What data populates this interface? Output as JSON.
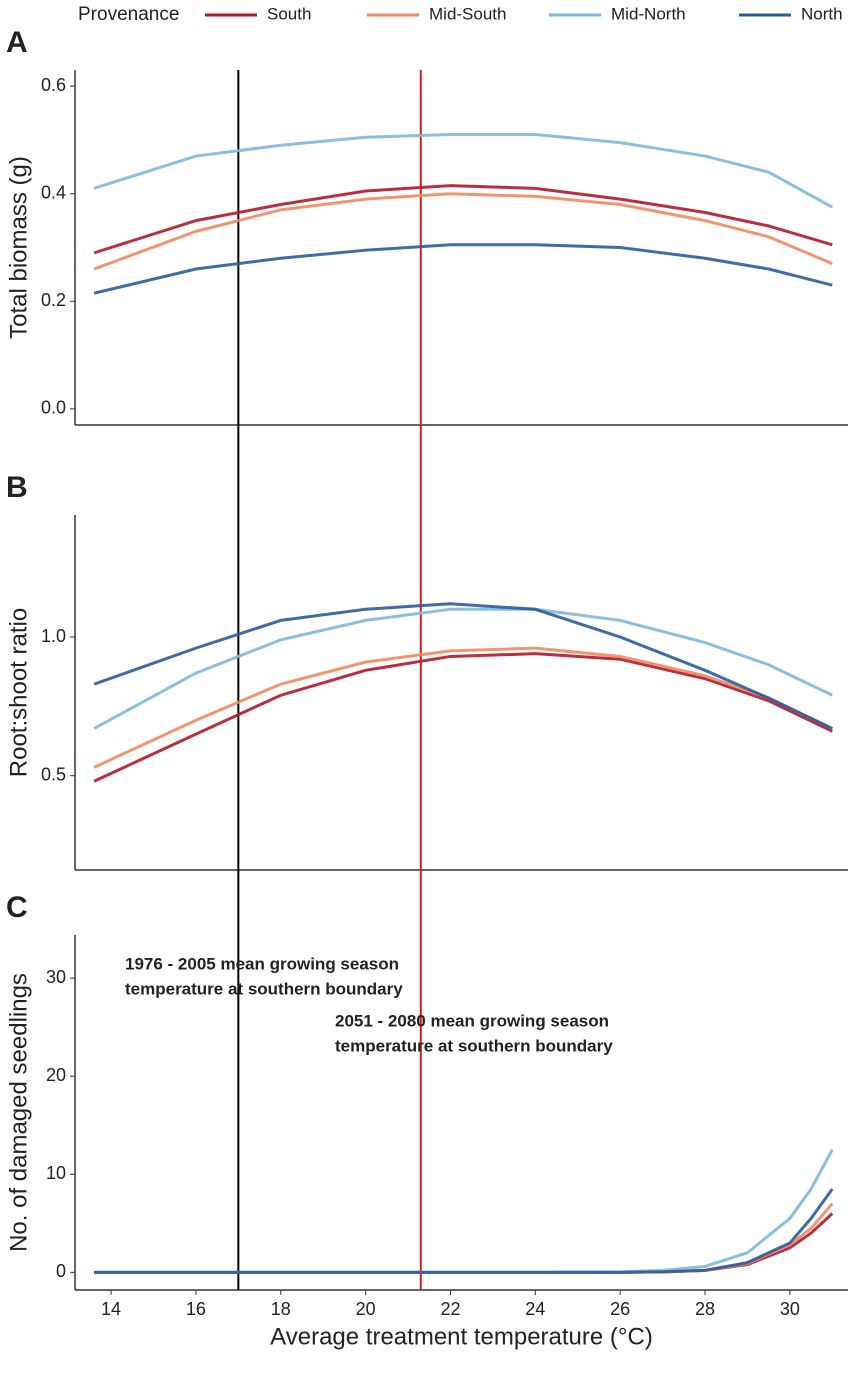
{
  "chart_data": [
    {
      "type": "line",
      "panel": "A",
      "legend_title": "Provenance",
      "y_label": "Total biomass (g)",
      "xlim": [
        13.15,
        31.37
      ],
      "ylim": [
        -0.03,
        0.63
      ],
      "yticks": [
        {
          "value": 0,
          "label": "0.0"
        },
        0.2,
        0.4,
        0.6
      ],
      "vlines": [
        {
          "x": 17,
          "color": "#000000"
        },
        {
          "x": 21.3,
          "color": "#d7191c"
        }
      ],
      "x": [
        13.6,
        16,
        18,
        20,
        22,
        24,
        26,
        28,
        29.5,
        31
      ],
      "series": [
        {
          "name": "South",
          "color": "#b2182b",
          "values": [
            0.29,
            0.35,
            0.38,
            0.405,
            0.415,
            0.41,
            0.39,
            0.365,
            0.34,
            0.305
          ]
        },
        {
          "name": "Mid-South",
          "color": "#ef8a62",
          "values": [
            0.26,
            0.33,
            0.37,
            0.39,
            0.4,
            0.395,
            0.38,
            0.35,
            0.32,
            0.27
          ]
        },
        {
          "name": "Mid-North",
          "color": "#7fb8da",
          "values": [
            0.41,
            0.47,
            0.49,
            0.505,
            0.51,
            0.51,
            0.495,
            0.47,
            0.44,
            0.375
          ]
        },
        {
          "name": "North",
          "color": "#2c5aa0",
          "values": [
            0.215,
            0.26,
            0.28,
            0.295,
            0.305,
            0.305,
            0.3,
            0.28,
            0.26,
            0.23
          ]
        }
      ]
    },
    {
      "type": "line",
      "panel": "B",
      "y_label": "Root:shoot ratio",
      "xlim": [
        13.15,
        31.37
      ],
      "ylim": [
        0.16,
        1.44
      ],
      "yticks": [
        0.5,
        {
          "value": 1,
          "label": "1.0"
        }
      ],
      "vlines": [
        {
          "x": 17,
          "color": "#000000"
        },
        {
          "x": 21.3,
          "color": "#d7191c"
        }
      ],
      "x": [
        13.6,
        16,
        18,
        20,
        22,
        24,
        26,
        28,
        29.5,
        31
      ],
      "series": [
        {
          "color": "#b2182b",
          "values": [
            0.48,
            0.65,
            0.79,
            0.88,
            0.93,
            0.94,
            0.92,
            0.85,
            0.77,
            0.66
          ]
        },
        {
          "color": "#ef8a62",
          "values": [
            0.53,
            0.7,
            0.83,
            0.91,
            0.95,
            0.96,
            0.93,
            0.86,
            0.78,
            0.67
          ]
        },
        {
          "color": "#7fb8da",
          "values": [
            0.67,
            0.87,
            0.99,
            1.06,
            1.1,
            1.1,
            1.06,
            0.98,
            0.9,
            0.79
          ]
        },
        {
          "color": "#2c5aa0",
          "values": [
            0.83,
            0.96,
            1.06,
            1.1,
            1.12,
            1.1,
            1.0,
            0.88,
            0.78,
            0.67
          ]
        }
      ]
    },
    {
      "type": "line",
      "panel": "C",
      "y_label": "No. of damaged seedlings",
      "x_label": "Average treatment temperature (°C)",
      "xlim": [
        13.15,
        31.37
      ],
      "ylim": [
        -1.8,
        34.4
      ],
      "xticks": [
        14,
        16,
        18,
        20,
        22,
        24,
        26,
        28,
        30
      ],
      "yticks": [
        0,
        10,
        20,
        30
      ],
      "vlines": [
        {
          "x": 17,
          "color": "#000000",
          "label": [
            "1976 - 2005 mean growing season",
            "temperature at southern boundary"
          ]
        },
        {
          "x": 21.3,
          "color": "#d7191c",
          "label": [
            "2051 - 2080 mean growing season",
            "temperature at southern boundary"
          ]
        }
      ],
      "x": [
        13.6,
        16,
        18,
        20,
        22,
        24,
        26,
        27,
        28,
        29,
        30,
        30.5,
        31
      ],
      "series": [
        {
          "color": "#b2182b",
          "values": [
            0,
            0,
            0,
            0,
            0,
            0,
            0,
            0.05,
            0.2,
            0.8,
            2.5,
            4,
            6
          ]
        },
        {
          "color": "#ef8a62",
          "values": [
            0,
            0,
            0,
            0,
            0,
            0,
            0,
            0.05,
            0.2,
            0.9,
            2.8,
            4.5,
            7
          ]
        },
        {
          "color": "#7fb8da",
          "values": [
            0,
            0,
            0,
            0,
            0,
            0,
            0.05,
            0.2,
            0.6,
            2,
            5.5,
            8.5,
            12.5
          ]
        },
        {
          "color": "#2c5aa0",
          "values": [
            0,
            0,
            0,
            0,
            0,
            0,
            0,
            0.05,
            0.2,
            1,
            3,
            5.5,
            8.5
          ]
        }
      ]
    }
  ]
}
